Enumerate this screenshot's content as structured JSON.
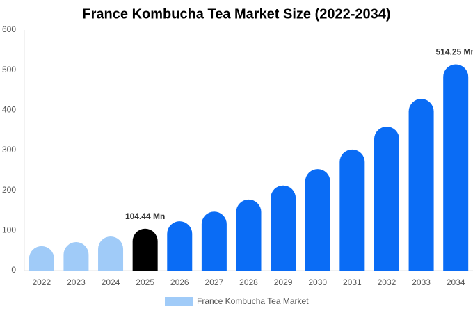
{
  "chart_data": {
    "type": "bar",
    "title": "France Kombucha Tea Market Size (2022-2034)",
    "categories": [
      "2022",
      "2023",
      "2024",
      "2025",
      "2026",
      "2027",
      "2028",
      "2029",
      "2030",
      "2031",
      "2032",
      "2033",
      "2034"
    ],
    "series": [
      {
        "name": "France Kombucha Tea Market",
        "color": "#a0cbf8",
        "values": [
          61,
          71,
          85,
          104.44,
          123,
          147,
          177,
          212,
          253,
          302,
          359,
          428,
          514.25
        ],
        "value_labels": [
          null,
          null,
          null,
          "104.44 Mn",
          null,
          null,
          null,
          null,
          null,
          null,
          null,
          null,
          "514.25 Mn"
        ],
        "bar_colors": [
          "#a0cbf8",
          "#a0cbf8",
          "#a0cbf8",
          "#000000",
          "#0a6cf5",
          "#0a6cf5",
          "#0a6cf5",
          "#0a6cf5",
          "#0a6cf5",
          "#0a6cf5",
          "#0a6cf5",
          "#0a6cf5",
          "#0a6cf5"
        ]
      }
    ],
    "ylim": [
      0,
      600
    ],
    "yticks": [
      0,
      100,
      200,
      300,
      400,
      500,
      600
    ],
    "grid": false
  }
}
